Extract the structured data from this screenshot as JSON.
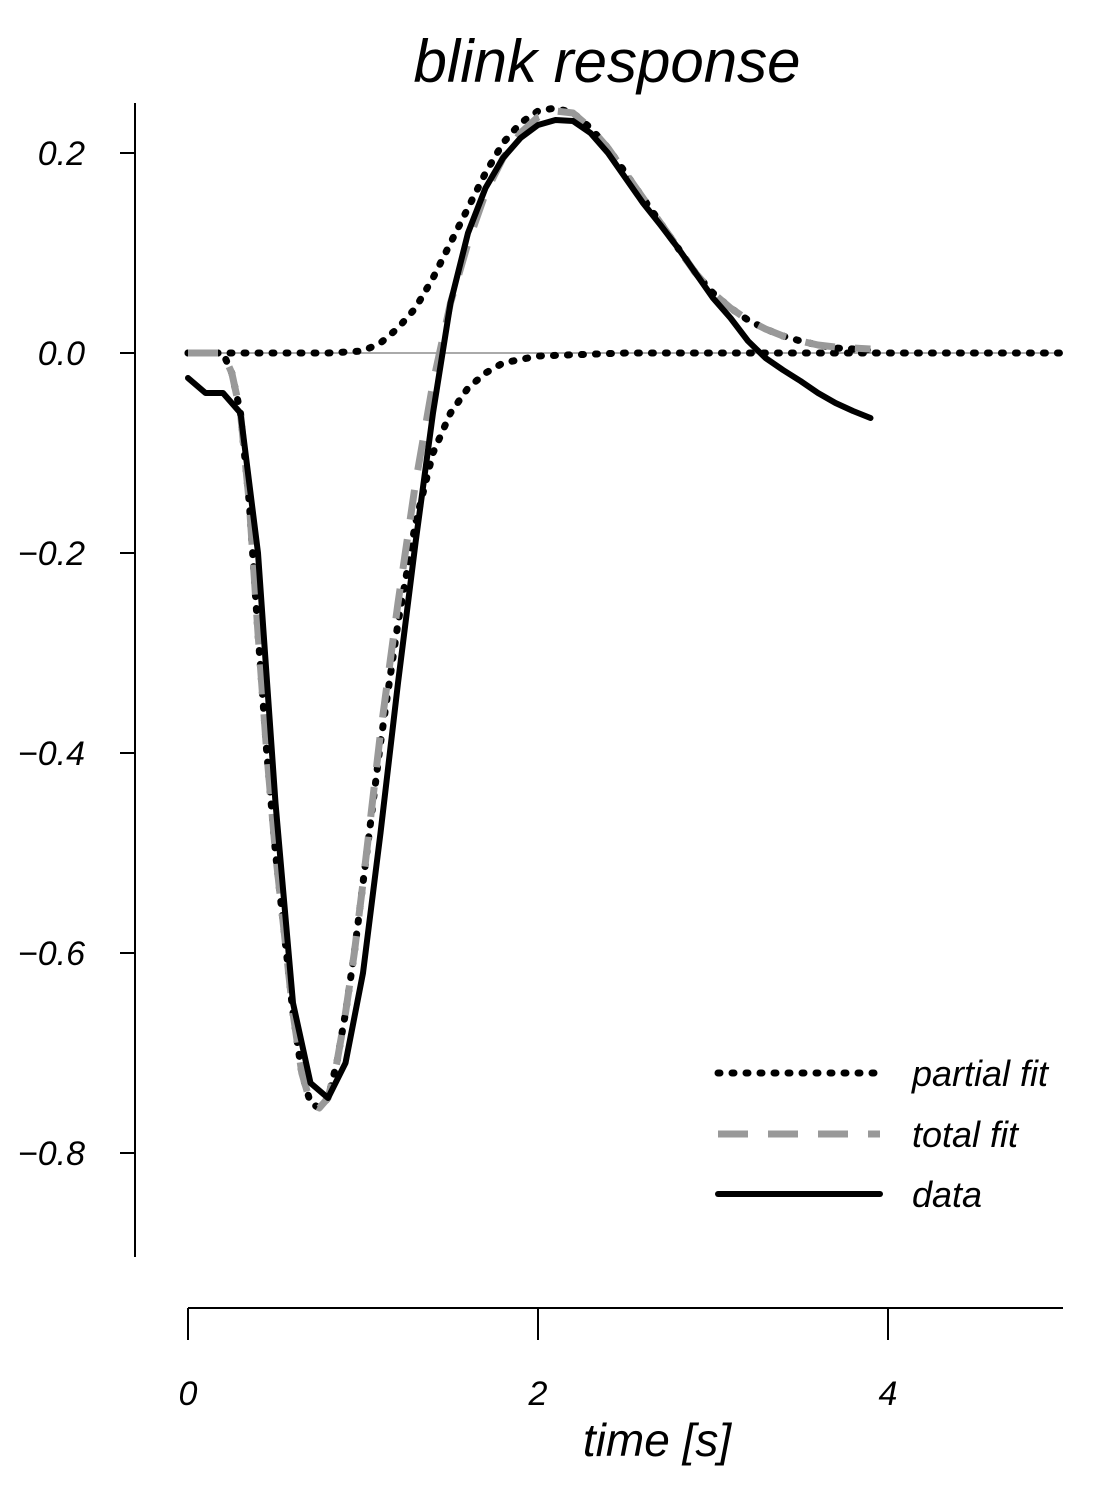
{
  "chart_data": {
    "type": "line",
    "title": "blink response",
    "xlabel": "time [s]",
    "ylabel": "",
    "xlim": [
      0,
      5
    ],
    "ylim": [
      -0.9,
      0.25
    ],
    "x_ticks": [
      0,
      2,
      4
    ],
    "x_tick_labels": [
      "0",
      "2",
      "4"
    ],
    "y_ticks": [
      0.2,
      0.0,
      -0.2,
      -0.4,
      -0.6,
      -0.8
    ],
    "y_tick_labels": [
      "0.2",
      "0.0",
      "−0.2",
      "−0.4",
      "−0.6",
      "−0.8"
    ],
    "zero_line": true,
    "grid": false,
    "legend_position": "bottom-right",
    "series": [
      {
        "name": "partial fit",
        "style": "dotted",
        "color": "#000000",
        "points": [
          [
            0,
            0
          ],
          [
            0.2,
            0
          ],
          [
            0.25,
            -0.02
          ],
          [
            0.3,
            -0.06
          ],
          [
            0.35,
            -0.15
          ],
          [
            0.4,
            -0.28
          ],
          [
            0.45,
            -0.4
          ],
          [
            0.5,
            -0.5
          ],
          [
            0.55,
            -0.58
          ],
          [
            0.6,
            -0.66
          ],
          [
            0.65,
            -0.72
          ],
          [
            0.7,
            -0.75
          ],
          [
            0.75,
            -0.755
          ],
          [
            0.8,
            -0.745
          ],
          [
            0.85,
            -0.71
          ],
          [
            0.9,
            -0.66
          ],
          [
            0.95,
            -0.6
          ],
          [
            1.0,
            -0.53
          ],
          [
            1.1,
            -0.39
          ],
          [
            1.2,
            -0.27
          ],
          [
            1.3,
            -0.17
          ],
          [
            1.4,
            -0.1
          ],
          [
            1.5,
            -0.06
          ],
          [
            1.6,
            -0.035
          ],
          [
            1.7,
            -0.02
          ],
          [
            1.8,
            -0.01
          ],
          [
            2.0,
            -0.003
          ],
          [
            2.5,
            0
          ],
          [
            5.0,
            0
          ]
        ]
      },
      {
        "name": "partial fit",
        "style": "dotted",
        "color": "#000000",
        "points": [
          [
            0,
            0
          ],
          [
            0.8,
            0
          ],
          [
            1.0,
            0.002
          ],
          [
            1.1,
            0.01
          ],
          [
            1.2,
            0.025
          ],
          [
            1.3,
            0.045
          ],
          [
            1.4,
            0.075
          ],
          [
            1.5,
            0.11
          ],
          [
            1.6,
            0.145
          ],
          [
            1.7,
            0.18
          ],
          [
            1.8,
            0.21
          ],
          [
            1.9,
            0.23
          ],
          [
            2.0,
            0.242
          ],
          [
            2.1,
            0.245
          ],
          [
            2.2,
            0.24
          ],
          [
            2.3,
            0.225
          ],
          [
            2.4,
            0.205
          ],
          [
            2.5,
            0.18
          ],
          [
            2.6,
            0.155
          ],
          [
            2.7,
            0.13
          ],
          [
            2.8,
            0.105
          ],
          [
            2.9,
            0.08
          ],
          [
            3.0,
            0.06
          ],
          [
            3.1,
            0.045
          ],
          [
            3.2,
            0.033
          ],
          [
            3.3,
            0.024
          ],
          [
            3.4,
            0.017
          ],
          [
            3.5,
            0.012
          ],
          [
            3.6,
            0.008
          ],
          [
            3.7,
            0.005
          ],
          [
            3.8,
            0.004
          ],
          [
            3.9,
            0.003
          ]
        ]
      },
      {
        "name": "total fit",
        "style": "dashed",
        "color": "#999999",
        "points": [
          [
            0,
            0
          ],
          [
            0.2,
            0
          ],
          [
            0.25,
            -0.02
          ],
          [
            0.3,
            -0.06
          ],
          [
            0.35,
            -0.15
          ],
          [
            0.4,
            -0.28
          ],
          [
            0.45,
            -0.4
          ],
          [
            0.5,
            -0.5
          ],
          [
            0.55,
            -0.58
          ],
          [
            0.6,
            -0.66
          ],
          [
            0.65,
            -0.72
          ],
          [
            0.7,
            -0.75
          ],
          [
            0.75,
            -0.755
          ],
          [
            0.8,
            -0.745
          ],
          [
            0.85,
            -0.71
          ],
          [
            0.9,
            -0.66
          ],
          [
            0.95,
            -0.6
          ],
          [
            1.0,
            -0.53
          ],
          [
            1.1,
            -0.38
          ],
          [
            1.2,
            -0.25
          ],
          [
            1.3,
            -0.13
          ],
          [
            1.4,
            -0.03
          ],
          [
            1.5,
            0.05
          ],
          [
            1.6,
            0.11
          ],
          [
            1.7,
            0.16
          ],
          [
            1.8,
            0.195
          ],
          [
            1.9,
            0.22
          ],
          [
            2.0,
            0.236
          ],
          [
            2.1,
            0.242
          ],
          [
            2.2,
            0.24
          ],
          [
            2.3,
            0.225
          ],
          [
            2.4,
            0.205
          ],
          [
            2.5,
            0.18
          ],
          [
            2.6,
            0.155
          ],
          [
            2.7,
            0.13
          ],
          [
            2.8,
            0.105
          ],
          [
            2.9,
            0.08
          ],
          [
            3.0,
            0.06
          ],
          [
            3.1,
            0.045
          ],
          [
            3.2,
            0.033
          ],
          [
            3.3,
            0.024
          ],
          [
            3.4,
            0.017
          ],
          [
            3.5,
            0.012
          ],
          [
            3.6,
            0.008
          ],
          [
            3.7,
            0.006
          ],
          [
            3.8,
            0.005
          ],
          [
            3.9,
            0.004
          ]
        ]
      },
      {
        "name": "data",
        "style": "solid",
        "color": "#000000",
        "points": [
          [
            0,
            -0.025
          ],
          [
            0.1,
            -0.04
          ],
          [
            0.2,
            -0.04
          ],
          [
            0.3,
            -0.06
          ],
          [
            0.4,
            -0.2
          ],
          [
            0.5,
            -0.45
          ],
          [
            0.6,
            -0.65
          ],
          [
            0.7,
            -0.73
          ],
          [
            0.8,
            -0.745
          ],
          [
            0.9,
            -0.71
          ],
          [
            1.0,
            -0.62
          ],
          [
            1.1,
            -0.48
          ],
          [
            1.2,
            -0.33
          ],
          [
            1.3,
            -0.19
          ],
          [
            1.4,
            -0.06
          ],
          [
            1.5,
            0.05
          ],
          [
            1.6,
            0.12
          ],
          [
            1.7,
            0.165
          ],
          [
            1.8,
            0.195
          ],
          [
            1.9,
            0.215
          ],
          [
            2.0,
            0.228
          ],
          [
            2.1,
            0.233
          ],
          [
            2.2,
            0.232
          ],
          [
            2.3,
            0.22
          ],
          [
            2.4,
            0.2
          ],
          [
            2.5,
            0.175
          ],
          [
            2.6,
            0.15
          ],
          [
            2.7,
            0.128
          ],
          [
            2.8,
            0.105
          ],
          [
            2.9,
            0.08
          ],
          [
            3.0,
            0.055
          ],
          [
            3.1,
            0.035
          ],
          [
            3.2,
            0.012
          ],
          [
            3.3,
            -0.005
          ],
          [
            3.4,
            -0.017
          ],
          [
            3.5,
            -0.028
          ],
          [
            3.6,
            -0.04
          ],
          [
            3.7,
            -0.05
          ],
          [
            3.8,
            -0.058
          ],
          [
            3.9,
            -0.065
          ]
        ]
      }
    ],
    "legend": [
      {
        "label": "partial fit",
        "style": "dotted",
        "color": "#000000"
      },
      {
        "label": "total fit",
        "style": "dashed",
        "color": "#999999"
      },
      {
        "label": "data",
        "style": "solid",
        "color": "#000000"
      }
    ]
  }
}
